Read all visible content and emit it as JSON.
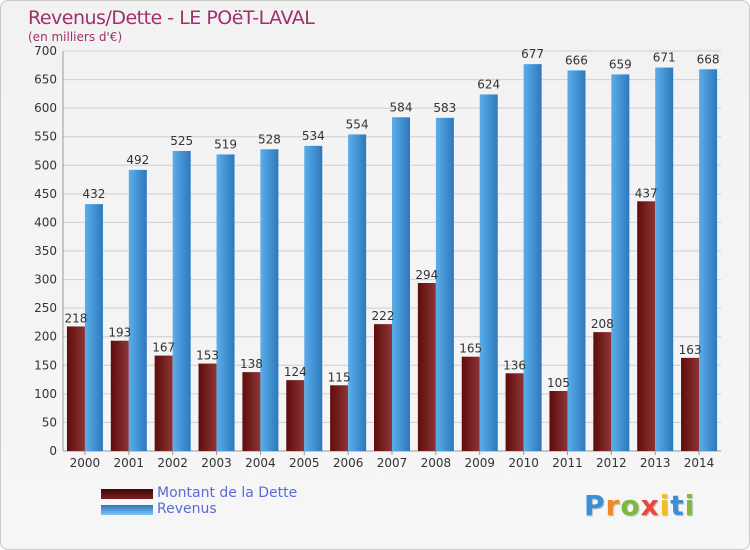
{
  "header": {
    "title": "Revenus/Dette - LE POëT-LAVAL",
    "subtitle": "(en milliers d'€)"
  },
  "colors": {
    "dette_dark": "#5e0c0c",
    "dette_light": "#8e3535",
    "revenus_dark": "#2d78bd",
    "revenus_light": "#5aaeea",
    "grid": "#cfcfcf",
    "title": "#a0306a",
    "legend_text": "#5a6bd8"
  },
  "legend": {
    "items": [
      {
        "label": "Montant de la Dette",
        "color": "#6b1414"
      },
      {
        "label": "Revenus",
        "color": "#4aa3e6"
      }
    ]
  },
  "logo": {
    "letters": [
      "P",
      "r",
      "o",
      "x",
      "i",
      "t",
      "i"
    ],
    "colors": [
      "#3a8fd6",
      "#f08a24",
      "#7cba3c",
      "#e64a3c",
      "#f0c020",
      "#3a8fd6",
      "#7cba3c"
    ]
  },
  "chart_data": {
    "type": "bar",
    "title": "Revenus/Dette - LE POëT-LAVAL",
    "subtitle": "(en milliers d'€)",
    "categories": [
      "2000",
      "2001",
      "2002",
      "2003",
      "2004",
      "2005",
      "2006",
      "2007",
      "2008",
      "2009",
      "2010",
      "2011",
      "2012",
      "2013",
      "2014"
    ],
    "series": [
      {
        "name": "Montant de la Dette",
        "values": [
          218,
          193,
          167,
          153,
          138,
          124,
          115,
          222,
          294,
          165,
          136,
          105,
          208,
          437,
          163
        ]
      },
      {
        "name": "Revenus",
        "values": [
          432,
          492,
          525,
          519,
          528,
          534,
          554,
          584,
          583,
          624,
          677,
          666,
          659,
          671,
          668
        ]
      }
    ],
    "y_ticks": [
      0,
      50,
      100,
      150,
      200,
      250,
      300,
      350,
      400,
      450,
      500,
      550,
      600,
      650,
      700
    ],
    "ylim": [
      0,
      700
    ],
    "grid": true,
    "legend_position": "bottom-left"
  }
}
